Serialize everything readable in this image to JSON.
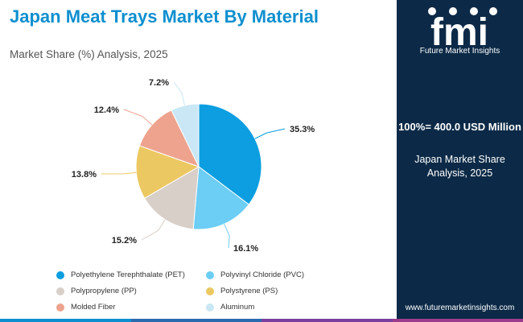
{
  "header": {
    "title": "Japan Meat Trays Market By Material",
    "subtitle": "Market Share (%) Analysis, 2025"
  },
  "sidebar": {
    "logo_text": "fmi",
    "logo_subtitle": "Future Market Insights",
    "total_label": "100%= 400.0 USD Million",
    "description": "Japan Market Share Analysis, 2025",
    "website": "www.futuremarketinsights.com"
  },
  "colors": {
    "accent": "#0d8fd0",
    "sidebar_bg": "#0c2a47",
    "bottom_bar": [
      "#0d8fd0",
      "#2a6bb0",
      "#7b3fa0",
      "#9b3d8c"
    ]
  },
  "chart_data": {
    "type": "pie",
    "title": "Japan Meat Trays Market By Material",
    "subtitle": "Market Share (%) Analysis, 2025",
    "start_angle_deg": 0,
    "direction": "clockwise",
    "slices": [
      {
        "name": "Polyethylene Terephthalate (PET)",
        "value": 35.3,
        "label": "35.3%",
        "color": "#0c9ee0"
      },
      {
        "name": "Polyvinyl Chloride (PVC)",
        "value": 16.1,
        "label": "16.1%",
        "color": "#6ccdf5"
      },
      {
        "name": "Polypropylene (PP)",
        "value": 15.2,
        "label": "15.2%",
        "color": "#d8cfc8"
      },
      {
        "name": "Polystyrene (PS)",
        "value": 13.8,
        "label": "13.8%",
        "color": "#ecc862"
      },
      {
        "name": "Molded Fiber",
        "value": 12.4,
        "label": "12.4%",
        "color": "#eda38e"
      },
      {
        "name": "Aluminum",
        "value": 7.2,
        "label": "7.2%",
        "color": "#c9e7f4"
      }
    ],
    "legend_position": "bottom"
  },
  "legend": [
    {
      "label": "Polyethylene Terephthalate (PET)",
      "color": "#0c9ee0"
    },
    {
      "label": "Polyvinyl Chloride (PVC)",
      "color": "#6ccdf5"
    },
    {
      "label": "Polypropylene (PP)",
      "color": "#d8cfc8"
    },
    {
      "label": "Polystyrene (PS)",
      "color": "#ecc862"
    },
    {
      "label": "Molded Fiber",
      "color": "#eda38e"
    },
    {
      "label": "Aluminum",
      "color": "#c9e7f4"
    }
  ]
}
